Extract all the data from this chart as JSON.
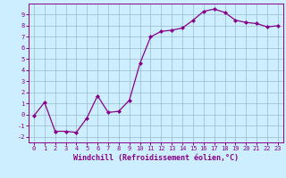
{
  "x": [
    0,
    1,
    2,
    3,
    4,
    5,
    6,
    7,
    8,
    9,
    10,
    11,
    12,
    13,
    14,
    15,
    16,
    17,
    18,
    19,
    20,
    21,
    22,
    23
  ],
  "y": [
    -0.1,
    1.1,
    -1.5,
    -1.5,
    -1.6,
    -0.3,
    1.7,
    0.2,
    0.3,
    1.3,
    4.6,
    7.0,
    7.5,
    7.6,
    7.8,
    8.5,
    9.3,
    9.5,
    9.2,
    8.5,
    8.3,
    8.2,
    7.9,
    8.0
  ],
  "line_color": "#880088",
  "marker": "D",
  "markersize": 2.0,
  "linewidth": 0.9,
  "background_color": "#cceeff",
  "grid_color": "#99bbcc",
  "xlabel": "Windchill (Refroidissement éolien,°C)",
  "xlim": [
    -0.5,
    23.5
  ],
  "ylim": [
    -2.5,
    10.0
  ],
  "xticks": [
    0,
    1,
    2,
    3,
    4,
    5,
    6,
    7,
    8,
    9,
    10,
    11,
    12,
    13,
    14,
    15,
    16,
    17,
    18,
    19,
    20,
    21,
    22,
    23
  ],
  "yticks": [
    -2,
    -1,
    0,
    1,
    2,
    3,
    4,
    5,
    6,
    7,
    8,
    9
  ],
  "tick_fontsize": 5.0,
  "label_fontsize": 6.0
}
